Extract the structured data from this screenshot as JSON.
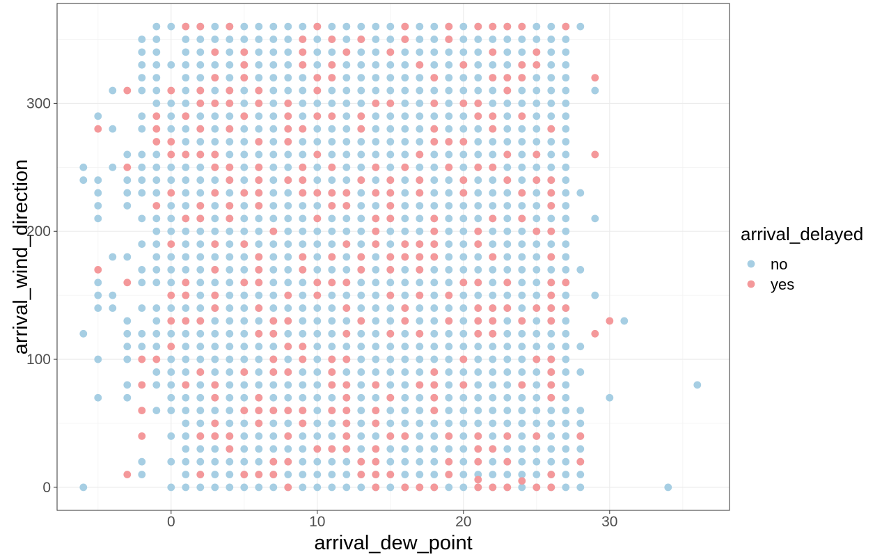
{
  "chart_data": {
    "type": "scatter",
    "title": "",
    "xlabel": "arrival_dew_point",
    "ylabel": "arrival_wind_direction",
    "xlim": [
      -7.8,
      38.2
    ],
    "ylim": [
      -18,
      378
    ],
    "x_ticks": [
      0,
      10,
      20,
      30
    ],
    "y_ticks": [
      0,
      100,
      200,
      300
    ],
    "grid": true,
    "legend": {
      "title": "arrival_delayed",
      "placement": "right",
      "entries": [
        {
          "label": "no",
          "color": "#a6cee3"
        },
        {
          "label": "yes",
          "color": "#f4989a"
        }
      ]
    },
    "series": [
      {
        "name": "no",
        "color": "#a6cee3",
        "pattern": "dense grid of observations at integer dew points from 1 to 27 and wind directions 0 to 360 in steps of 10",
        "dense_x_range": [
          1,
          27
        ],
        "dense_y_range": [
          0,
          360
        ],
        "y_step": 10,
        "points": [
          [
            -6,
            0
          ],
          [
            -6,
            120
          ],
          [
            -6,
            240
          ],
          [
            -6,
            250
          ],
          [
            -5,
            70
          ],
          [
            -5,
            100
          ],
          [
            -5,
            140
          ],
          [
            -5,
            150
          ],
          [
            -5,
            160
          ],
          [
            -5,
            210
          ],
          [
            -5,
            220
          ],
          [
            -5,
            230
          ],
          [
            -5,
            240
          ],
          [
            -5,
            290
          ],
          [
            -4,
            140
          ],
          [
            -4,
            150
          ],
          [
            -4,
            180
          ],
          [
            -4,
            250
          ],
          [
            -4,
            280
          ],
          [
            -4,
            310
          ],
          [
            -3,
            70
          ],
          [
            -3,
            80
          ],
          [
            -3,
            100
          ],
          [
            -3,
            110
          ],
          [
            -3,
            120
          ],
          [
            -3,
            130
          ],
          [
            -3,
            180
          ],
          [
            -3,
            220
          ],
          [
            -3,
            230
          ],
          [
            -3,
            240
          ],
          [
            -3,
            260
          ],
          [
            -2,
            10
          ],
          [
            -2,
            20
          ],
          [
            -2,
            110
          ],
          [
            -2,
            120
          ],
          [
            -2,
            140
          ],
          [
            -2,
            160
          ],
          [
            -2,
            170
          ],
          [
            -2,
            190
          ],
          [
            -2,
            210
          ],
          [
            -2,
            230
          ],
          [
            -2,
            240
          ],
          [
            -2,
            250
          ],
          [
            -2,
            260
          ],
          [
            -2,
            280
          ],
          [
            -2,
            290
          ],
          [
            -2,
            310
          ],
          [
            -2,
            320
          ],
          [
            -2,
            330
          ],
          [
            -2,
            340
          ],
          [
            -2,
            350
          ],
          [
            -1,
            60
          ],
          [
            -1,
            80
          ],
          [
            -1,
            90
          ],
          [
            -1,
            110
          ],
          [
            -1,
            120
          ],
          [
            -1,
            130
          ],
          [
            -1,
            140
          ],
          [
            -1,
            160
          ],
          [
            -1,
            170
          ],
          [
            -1,
            180
          ],
          [
            -1,
            190
          ],
          [
            -1,
            200
          ],
          [
            -1,
            210
          ],
          [
            -1,
            230
          ],
          [
            -1,
            240
          ],
          [
            -1,
            250
          ],
          [
            -1,
            260
          ],
          [
            -1,
            300
          ],
          [
            -1,
            310
          ],
          [
            -1,
            320
          ],
          [
            -1,
            330
          ],
          [
            -1,
            340
          ],
          [
            -1,
            350
          ],
          [
            -1,
            360
          ],
          [
            0,
            0
          ],
          [
            0,
            20
          ],
          [
            0,
            40
          ],
          [
            0,
            60
          ],
          [
            0,
            70
          ],
          [
            0,
            80
          ],
          [
            0,
            90
          ],
          [
            0,
            100
          ],
          [
            0,
            120
          ],
          [
            0,
            140
          ],
          [
            0,
            160
          ],
          [
            0,
            170
          ],
          [
            0,
            180
          ],
          [
            0,
            200
          ],
          [
            0,
            210
          ],
          [
            0,
            220
          ],
          [
            0,
            240
          ],
          [
            0,
            250
          ],
          [
            0,
            280
          ],
          [
            0,
            290
          ],
          [
            0,
            300
          ],
          [
            0,
            330
          ],
          [
            0,
            360
          ],
          [
            28,
            0
          ],
          [
            28,
            10
          ],
          [
            28,
            20
          ],
          [
            28,
            30
          ],
          [
            28,
            40
          ],
          [
            28,
            50
          ],
          [
            28,
            60
          ],
          [
            28,
            90
          ],
          [
            28,
            110
          ],
          [
            28,
            170
          ],
          [
            28,
            230
          ],
          [
            28,
            360
          ],
          [
            29,
            150
          ],
          [
            29,
            210
          ],
          [
            29,
            310
          ],
          [
            30,
            70
          ],
          [
            31,
            130
          ],
          [
            34,
            0
          ],
          [
            36,
            80
          ]
        ]
      },
      {
        "name": "yes",
        "color": "#f4989a",
        "pattern": "scattered among the dense grid",
        "points": [
          [
            -5,
            170
          ],
          [
            -5,
            280
          ],
          [
            -3,
            10
          ],
          [
            -3,
            160
          ],
          [
            -3,
            250
          ],
          [
            -3,
            310
          ],
          [
            -2,
            40
          ],
          [
            -2,
            60
          ],
          [
            -2,
            80
          ],
          [
            -2,
            100
          ],
          [
            -1,
            100
          ],
          [
            -1,
            220
          ],
          [
            -1,
            270
          ],
          [
            -1,
            280
          ],
          [
            -1,
            290
          ],
          [
            0,
            110
          ],
          [
            0,
            130
          ],
          [
            0,
            150
          ],
          [
            0,
            190
          ],
          [
            0,
            230
          ],
          [
            0,
            260
          ],
          [
            0,
            270
          ],
          [
            0,
            310
          ],
          [
            21,
            6
          ],
          [
            24,
            5
          ],
          [
            28,
            20
          ],
          [
            28,
            40
          ],
          [
            29,
            120
          ],
          [
            29,
            260
          ],
          [
            29,
            320
          ],
          [
            30,
            130
          ]
        ]
      }
    ]
  }
}
